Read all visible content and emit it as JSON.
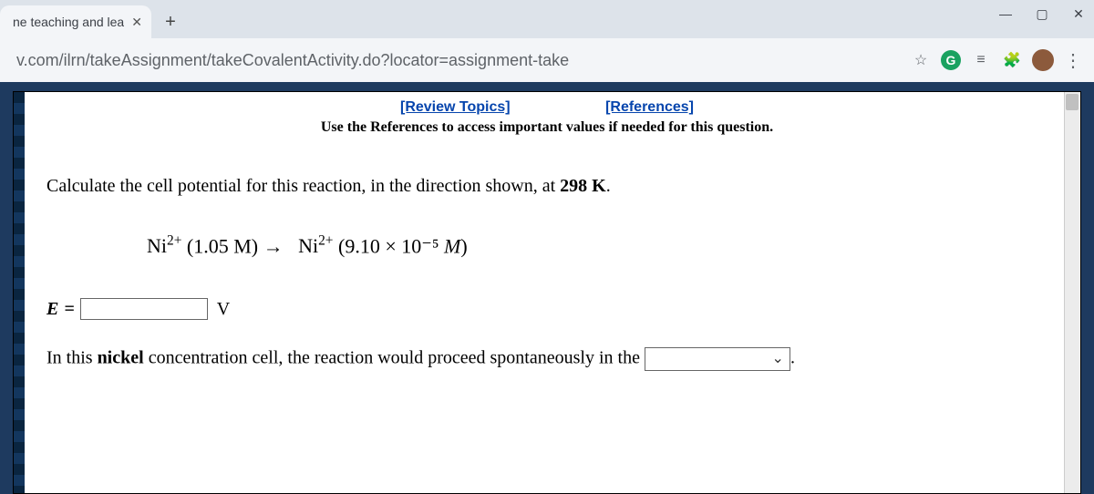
{
  "browser": {
    "tab_title": "ne teaching and lea",
    "url": "v.com/ilrn/takeAssignment/takeCovalentActivity.do?locator=assignment-take",
    "window_controls": {
      "minimize": "—",
      "maximize": "▢",
      "close": "✕"
    },
    "new_tab_glyph": "+",
    "tab_close_glyph": "✕",
    "star_empty_glyph": "☆",
    "g_badge": "G",
    "reading_list_glyph": "☆",
    "extensions_glyph": "🧩",
    "menu_glyph": "⋮",
    "list_icon_glyph": "≡"
  },
  "links": {
    "review_topics": "[Review Topics]",
    "references": "[References]"
  },
  "note": "Use the References to access important values if needed for this question.",
  "question": {
    "prompt_prefix": "Calculate the cell potential for this reaction, in the direction shown, at ",
    "temperature": "298 K",
    "prompt_suffix": ".",
    "equation": {
      "species_left": "Ni²⁺",
      "conc_left": "(1.05 M)",
      "arrow": "→",
      "species_right": "Ni²⁺",
      "conc_right_open": "(",
      "conc_right_value": "9.10 × 10⁻⁵",
      "conc_right_unit": " M",
      "conc_right_close": ")"
    },
    "answer_label_E": "E",
    "answer_equals": "=",
    "answer_unit": "V",
    "sentence_prefix": "In this ",
    "metal": "nickel",
    "sentence_mid": " concentration cell, the reaction would proceed spontaneously in the ",
    "sentence_suffix": "."
  },
  "colors": {
    "link": "#0645ad",
    "page_bg": "#ffffff",
    "viewport_bg": "#1e3a5f",
    "chrome_bg": "#dde3ea"
  }
}
